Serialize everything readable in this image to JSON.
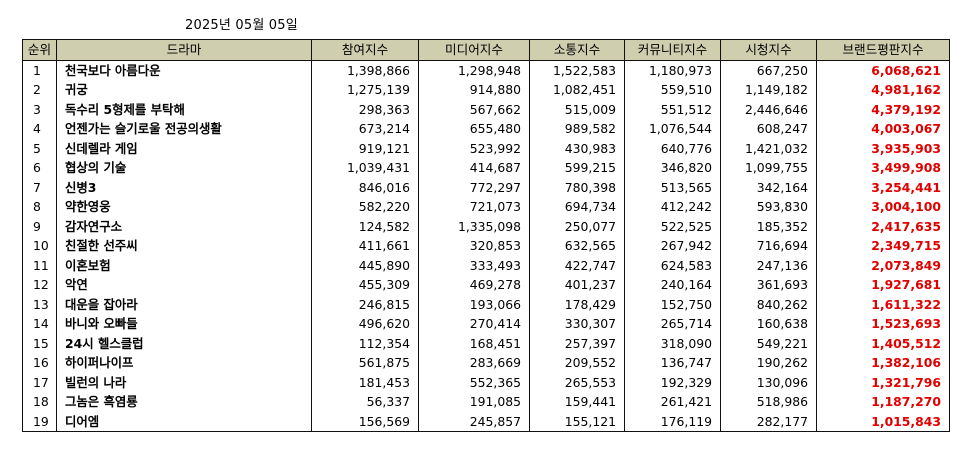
{
  "date": "2025년 05월 05일",
  "headers": [
    "순위",
    "드라마",
    "참여지수",
    "미디어지수",
    "소통지수",
    "커뮤니티지수",
    "시청지수",
    "브랜드평판지수"
  ],
  "rows": [
    [
      "1",
      "천국보다 아름다운",
      "1,398,866",
      "1,298,948",
      "1,522,583",
      "1,180,973",
      "667,250",
      "6,068,621"
    ],
    [
      "2",
      "귀궁",
      "1,275,139",
      "914,880",
      "1,082,451",
      "559,510",
      "1,149,182",
      "4,981,162"
    ],
    [
      "3",
      "독수리 5형제를 부탁해",
      "298,363",
      "567,662",
      "515,009",
      "551,512",
      "2,446,646",
      "4,379,192"
    ],
    [
      "4",
      "언젠가는 슬기로울 전공의생활",
      "673,214",
      "655,480",
      "989,582",
      "1,076,544",
      "608,247",
      "4,003,067"
    ],
    [
      "5",
      "신데렐라 게임",
      "919,121",
      "523,992",
      "430,983",
      "640,776",
      "1,421,032",
      "3,935,903"
    ],
    [
      "6",
      "협상의 기술",
      "1,039,431",
      "414,687",
      "599,215",
      "346,820",
      "1,099,755",
      "3,499,908"
    ],
    [
      "7",
      "신병3",
      "846,016",
      "772,297",
      "780,398",
      "513,565",
      "342,164",
      "3,254,441"
    ],
    [
      "8",
      "약한영웅",
      "582,220",
      "721,073",
      "694,734",
      "412,242",
      "593,830",
      "3,004,100"
    ],
    [
      "9",
      "감자연구소",
      "124,582",
      "1,335,098",
      "250,077",
      "522,525",
      "185,352",
      "2,417,635"
    ],
    [
      "10",
      "친절한 선주씨",
      "411,661",
      "320,853",
      "632,565",
      "267,942",
      "716,694",
      "2,349,715"
    ],
    [
      "11",
      "이혼보험",
      "445,890",
      "333,493",
      "422,747",
      "624,583",
      "247,136",
      "2,073,849"
    ],
    [
      "12",
      "악연",
      "455,309",
      "469,278",
      "401,237",
      "240,164",
      "361,693",
      "1,927,681"
    ],
    [
      "13",
      "대운을 잡아라",
      "246,815",
      "193,066",
      "178,429",
      "152,750",
      "840,262",
      "1,611,322"
    ],
    [
      "14",
      "바니와 오빠들",
      "496,620",
      "270,414",
      "330,307",
      "265,714",
      "160,638",
      "1,523,693"
    ],
    [
      "15",
      "24시 헬스클럽",
      "112,354",
      "168,451",
      "257,397",
      "318,090",
      "549,221",
      "1,405,512"
    ],
    [
      "16",
      "하이퍼나이프",
      "561,875",
      "283,669",
      "209,552",
      "136,747",
      "190,262",
      "1,382,106"
    ],
    [
      "17",
      "빌런의 나라",
      "181,453",
      "552,365",
      "265,553",
      "192,329",
      "130,096",
      "1,321,796"
    ],
    [
      "18",
      "그놈은 흑염룡",
      "56,337",
      "191,085",
      "159,441",
      "261,421",
      "518,986",
      "1,187,270"
    ],
    [
      "19",
      "디어엠",
      "156,569",
      "245,857",
      "155,121",
      "176,119",
      "282,177",
      "1,015,843"
    ]
  ],
  "colors": {
    "header_bg": "#cfcfb0",
    "brand_text": "#e00000"
  }
}
